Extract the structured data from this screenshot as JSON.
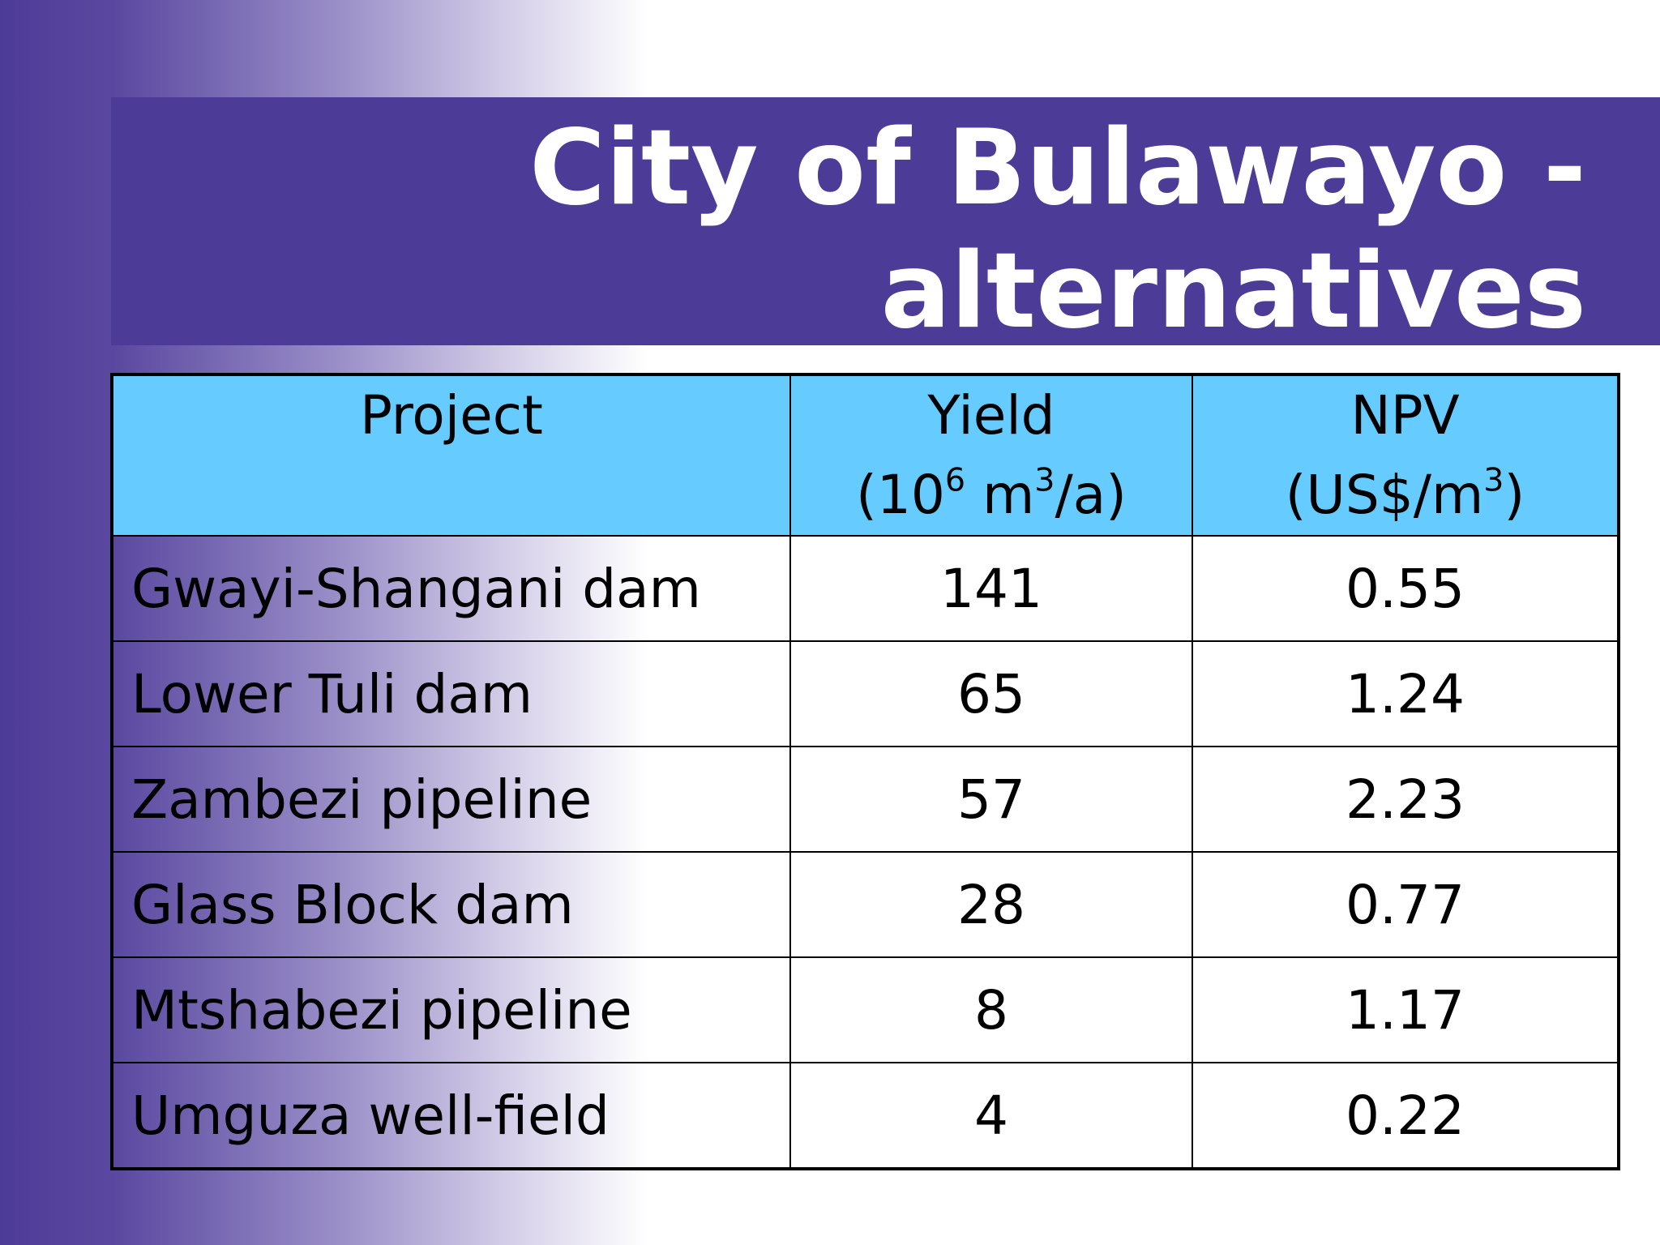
{
  "title": {
    "line1": "City of Bulawayo -",
    "line2": "alternatives"
  },
  "table": {
    "headers": [
      {
        "line1": "Project",
        "line2": ""
      },
      {
        "line1": "Yield",
        "line2_pre": "(10",
        "line2_sup1": "6",
        "line2_mid": " m",
        "line2_sup2": "3",
        "line2_post": "/a)"
      },
      {
        "line1": "NPV",
        "line2_pre": "(US$/m",
        "line2_sup1": "3",
        "line2_post": ")"
      }
    ],
    "rows": [
      {
        "project": "Gwayi-Shangani dam",
        "yield": "141",
        "npv": "0.55"
      },
      {
        "project": "Lower Tuli dam",
        "yield": "65",
        "npv": "1.24"
      },
      {
        "project": "Zambezi pipeline",
        "yield": "57",
        "npv": "2.23"
      },
      {
        "project": "Glass Block dam",
        "yield": "28",
        "npv": "0.77"
      },
      {
        "project": "Mtshabezi pipeline",
        "yield": "8",
        "npv": "1.17"
      },
      {
        "project": "Umguza well-field",
        "yield": "4",
        "npv": "0.22"
      }
    ]
  }
}
